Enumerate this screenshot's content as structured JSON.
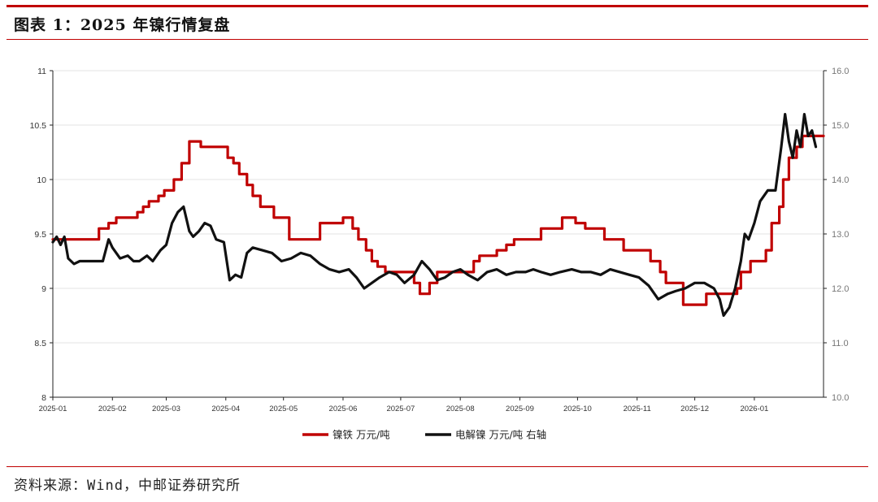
{
  "header": {
    "title": "图表 1：2025 年镍行情复盘"
  },
  "footer": {
    "source": "资料来源：Wind，中邮证券研究所"
  },
  "colors": {
    "accent": "#c00000",
    "nickel_iron": "#c00000",
    "electrolytic_nickel": "#111111",
    "grid": "#e3e3e3"
  },
  "chart_data": {
    "type": "line",
    "title": "",
    "x_ticks": [
      "2025-01",
      "2025-02",
      "2025-03",
      "2025-04",
      "2025-05",
      "2025-06",
      "2025-07",
      "2025-08",
      "2025-09",
      "2025-10",
      "2025-11",
      "2025-12",
      "2026-01"
    ],
    "y_left": {
      "ylim": [
        8,
        11
      ],
      "ticks": [
        "8",
        "8.5",
        "9",
        "9.5",
        "10",
        "10.5",
        "11"
      ]
    },
    "y_right": {
      "ylim": [
        10.0,
        16.0
      ],
      "ticks": [
        "10.0",
        "11.0",
        "12.0",
        "13.0",
        "14.0",
        "15.0",
        "16.0"
      ]
    },
    "grid": true,
    "legend_position": "bottom",
    "series": [
      {
        "name": "镍铁  万元/吨",
        "axis": "left",
        "step": true,
        "points": [
          [
            "2025-01-01",
            9.45
          ],
          [
            "2025-01-25",
            9.55
          ],
          [
            "2025-01-30",
            9.6
          ],
          [
            "2025-02-03",
            9.65
          ],
          [
            "2025-02-14",
            9.7
          ],
          [
            "2025-02-17",
            9.75
          ],
          [
            "2025-02-20",
            9.8
          ],
          [
            "2025-02-25",
            9.85
          ],
          [
            "2025-02-28",
            9.9
          ],
          [
            "2025-03-05",
            10.0
          ],
          [
            "2025-03-09",
            10.15
          ],
          [
            "2025-03-13",
            10.35
          ],
          [
            "2025-03-19",
            10.3
          ],
          [
            "2025-04-02",
            10.2
          ],
          [
            "2025-04-05",
            10.15
          ],
          [
            "2025-04-08",
            10.05
          ],
          [
            "2025-04-12",
            9.95
          ],
          [
            "2025-04-15",
            9.85
          ],
          [
            "2025-04-19",
            9.75
          ],
          [
            "2025-04-26",
            9.65
          ],
          [
            "2025-05-04",
            9.45
          ],
          [
            "2025-05-20",
            9.6
          ],
          [
            "2025-06-01",
            9.65
          ],
          [
            "2025-06-06",
            9.55
          ],
          [
            "2025-06-09",
            9.45
          ],
          [
            "2025-06-13",
            9.35
          ],
          [
            "2025-06-16",
            9.25
          ],
          [
            "2025-06-19",
            9.2
          ],
          [
            "2025-06-23",
            9.15
          ],
          [
            "2025-07-08",
            9.05
          ],
          [
            "2025-07-11",
            8.95
          ],
          [
            "2025-07-16",
            9.05
          ],
          [
            "2025-07-20",
            9.15
          ],
          [
            "2025-08-08",
            9.25
          ],
          [
            "2025-08-11",
            9.3
          ],
          [
            "2025-08-20",
            9.35
          ],
          [
            "2025-08-25",
            9.4
          ],
          [
            "2025-08-29",
            9.45
          ],
          [
            "2025-09-12",
            9.55
          ],
          [
            "2025-09-23",
            9.65
          ],
          [
            "2025-09-30",
            9.6
          ],
          [
            "2025-10-05",
            9.55
          ],
          [
            "2025-10-15",
            9.45
          ],
          [
            "2025-10-25",
            9.35
          ],
          [
            "2025-11-08",
            9.25
          ],
          [
            "2025-11-13",
            9.15
          ],
          [
            "2025-11-16",
            9.05
          ],
          [
            "2025-11-25",
            8.85
          ],
          [
            "2025-12-07",
            8.95
          ],
          [
            "2025-12-23",
            9.0
          ],
          [
            "2025-12-25",
            9.15
          ],
          [
            "2025-12-30",
            9.25
          ],
          [
            "2026-01-07",
            9.35
          ],
          [
            "2026-01-10",
            9.6
          ],
          [
            "2026-01-14",
            9.75
          ],
          [
            "2026-01-16",
            10.0
          ],
          [
            "2026-01-19",
            10.2
          ],
          [
            "2026-01-23",
            10.3
          ],
          [
            "2026-01-26",
            10.4
          ]
        ]
      },
      {
        "name": "电解镍  万元/吨  右轴",
        "axis": "right",
        "step": false,
        "points": [
          [
            "2025-01-01",
            12.85
          ],
          [
            "2025-01-03",
            12.95
          ],
          [
            "2025-01-05",
            12.8
          ],
          [
            "2025-01-07",
            12.95
          ],
          [
            "2025-01-09",
            12.55
          ],
          [
            "2025-01-12",
            12.45
          ],
          [
            "2025-01-15",
            12.5
          ],
          [
            "2025-01-20",
            12.5
          ],
          [
            "2025-01-27",
            12.5
          ],
          [
            "2025-01-30",
            12.9
          ],
          [
            "2025-02-01",
            12.75
          ],
          [
            "2025-02-05",
            12.55
          ],
          [
            "2025-02-09",
            12.6
          ],
          [
            "2025-02-12",
            12.5
          ],
          [
            "2025-02-15",
            12.5
          ],
          [
            "2025-02-19",
            12.6
          ],
          [
            "2025-02-22",
            12.5
          ],
          [
            "2025-02-26",
            12.7
          ],
          [
            "2025-03-01",
            12.8
          ],
          [
            "2025-03-04",
            13.2
          ],
          [
            "2025-03-07",
            13.4
          ],
          [
            "2025-03-10",
            13.5
          ],
          [
            "2025-03-13",
            13.05
          ],
          [
            "2025-03-15",
            12.95
          ],
          [
            "2025-03-18",
            13.05
          ],
          [
            "2025-03-21",
            13.2
          ],
          [
            "2025-03-24",
            13.15
          ],
          [
            "2025-03-27",
            12.9
          ],
          [
            "2025-03-31",
            12.85
          ],
          [
            "2025-04-03",
            12.15
          ],
          [
            "2025-04-06",
            12.25
          ],
          [
            "2025-04-09",
            12.2
          ],
          [
            "2025-04-12",
            12.65
          ],
          [
            "2025-04-15",
            12.75
          ],
          [
            "2025-04-20",
            12.7
          ],
          [
            "2025-04-25",
            12.65
          ],
          [
            "2025-04-30",
            12.5
          ],
          [
            "2025-05-05",
            12.55
          ],
          [
            "2025-05-10",
            12.65
          ],
          [
            "2025-05-15",
            12.6
          ],
          [
            "2025-05-20",
            12.45
          ],
          [
            "2025-05-25",
            12.35
          ],
          [
            "2025-05-30",
            12.3
          ],
          [
            "2025-06-04",
            12.35
          ],
          [
            "2025-06-08",
            12.2
          ],
          [
            "2025-06-12",
            12.0
          ],
          [
            "2025-06-16",
            12.1
          ],
          [
            "2025-06-20",
            12.2
          ],
          [
            "2025-06-25",
            12.3
          ],
          [
            "2025-06-29",
            12.25
          ],
          [
            "2025-07-03",
            12.1
          ],
          [
            "2025-07-08",
            12.25
          ],
          [
            "2025-07-12",
            12.5
          ],
          [
            "2025-07-16",
            12.35
          ],
          [
            "2025-07-20",
            12.15
          ],
          [
            "2025-07-24",
            12.2
          ],
          [
            "2025-07-28",
            12.3
          ],
          [
            "2025-08-01",
            12.35
          ],
          [
            "2025-08-05",
            12.25
          ],
          [
            "2025-08-10",
            12.15
          ],
          [
            "2025-08-15",
            12.3
          ],
          [
            "2025-08-20",
            12.35
          ],
          [
            "2025-08-25",
            12.25
          ],
          [
            "2025-08-30",
            12.3
          ],
          [
            "2025-09-04",
            12.3
          ],
          [
            "2025-09-08",
            12.35
          ],
          [
            "2025-09-12",
            12.3
          ],
          [
            "2025-09-17",
            12.25
          ],
          [
            "2025-09-22",
            12.3
          ],
          [
            "2025-09-28",
            12.35
          ],
          [
            "2025-10-03",
            12.3
          ],
          [
            "2025-10-08",
            12.3
          ],
          [
            "2025-10-13",
            12.25
          ],
          [
            "2025-10-18",
            12.35
          ],
          [
            "2025-10-23",
            12.3
          ],
          [
            "2025-10-28",
            12.25
          ],
          [
            "2025-11-02",
            12.2
          ],
          [
            "2025-11-07",
            12.05
          ],
          [
            "2025-11-12",
            11.8
          ],
          [
            "2025-11-17",
            11.9
          ],
          [
            "2025-11-21",
            11.95
          ],
          [
            "2025-11-26",
            12.0
          ],
          [
            "2025-12-01",
            12.1
          ],
          [
            "2025-12-06",
            12.1
          ],
          [
            "2025-12-11",
            12.0
          ],
          [
            "2025-12-14",
            11.8
          ],
          [
            "2025-12-16",
            11.5
          ],
          [
            "2025-12-19",
            11.65
          ],
          [
            "2025-12-22",
            12.0
          ],
          [
            "2025-12-25",
            12.5
          ],
          [
            "2025-12-27",
            13.0
          ],
          [
            "2025-12-29",
            12.9
          ],
          [
            "2026-01-01",
            13.2
          ],
          [
            "2026-01-04",
            13.6
          ],
          [
            "2026-01-08",
            13.8
          ],
          [
            "2026-01-12",
            13.8
          ],
          [
            "2026-01-15",
            14.6
          ],
          [
            "2026-01-17",
            15.2
          ],
          [
            "2026-01-19",
            14.7
          ],
          [
            "2026-01-21",
            14.4
          ],
          [
            "2026-01-23",
            14.9
          ],
          [
            "2026-01-25",
            14.6
          ],
          [
            "2026-01-27",
            15.2
          ],
          [
            "2026-01-29",
            14.8
          ],
          [
            "2026-01-31",
            14.9
          ],
          [
            "2026-02-02",
            14.6
          ]
        ]
      }
    ]
  }
}
